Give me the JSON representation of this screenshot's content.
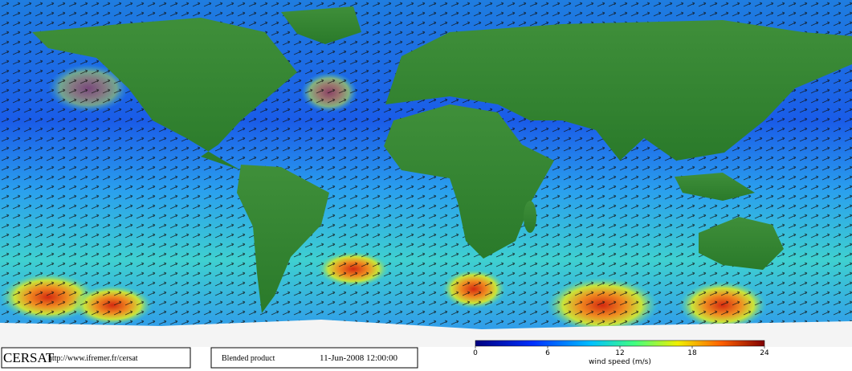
{
  "logo": "CERSAT",
  "url": "http://www.ifremer.fr/cersat",
  "product": "Blended product",
  "date": "11-Jun-2008 12:00:00",
  "colorbar": {
    "range": [
      0,
      24
    ],
    "ticks": [
      0,
      6,
      12,
      18,
      24
    ],
    "label": "wind speed (m/s)"
  }
}
